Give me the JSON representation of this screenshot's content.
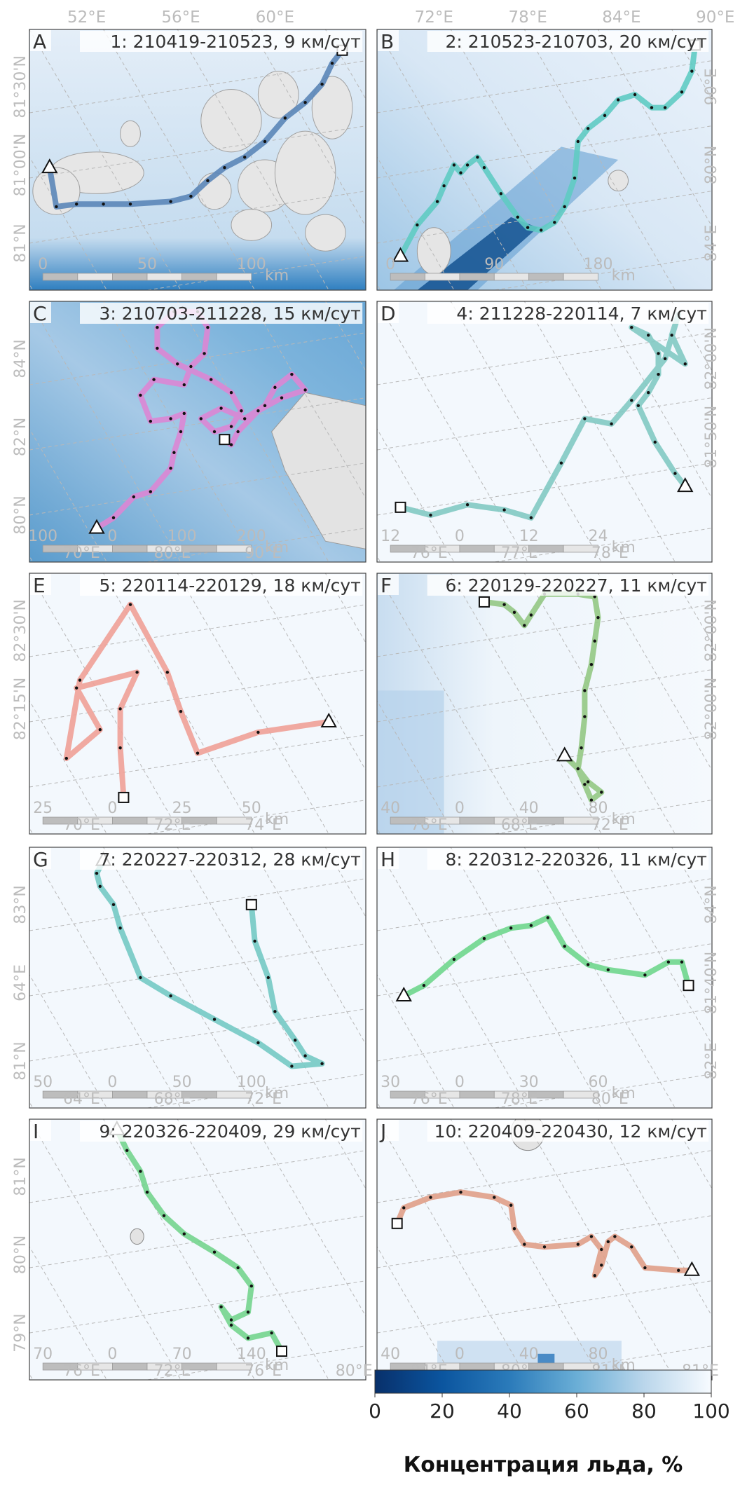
{
  "figure": {
    "colorbar": {
      "label": "Концентрация льда, %",
      "ticks": [
        "0",
        "20",
        "40",
        "60",
        "80",
        "100"
      ],
      "min": 0,
      "max": 100
    }
  },
  "chart_data": [
    {
      "type": "line",
      "letter": "A",
      "title": "1: 210419-210523, 9 км/сут",
      "color": "#5b86b8",
      "background": "mixed_islands",
      "lon_labels": [
        "52°E",
        "56°E",
        "60°E"
      ],
      "lat_labels": [
        "81°30'N",
        "81°00'N",
        "81°N"
      ],
      "scale_labels": [
        "0",
        "50",
        "100"
      ],
      "scale_unit": "km",
      "track": [
        [
          0.06,
          0.53
        ],
        [
          0.08,
          0.68
        ],
        [
          0.14,
          0.67
        ],
        [
          0.22,
          0.67
        ],
        [
          0.3,
          0.67
        ],
        [
          0.42,
          0.66
        ],
        [
          0.48,
          0.64
        ],
        [
          0.53,
          0.58
        ],
        [
          0.58,
          0.53
        ],
        [
          0.64,
          0.49
        ],
        [
          0.7,
          0.43
        ],
        [
          0.76,
          0.34
        ],
        [
          0.82,
          0.28
        ],
        [
          0.87,
          0.21
        ],
        [
          0.9,
          0.13
        ],
        [
          0.93,
          0.08
        ]
      ]
    },
    {
      "type": "line",
      "letter": "B",
      "title": "2: 210523-210703, 20 км/сут",
      "color": "#5fcbc3",
      "background": "stripe",
      "lon_labels": [
        "72°E",
        "78°E",
        "84°E",
        "90°E"
      ],
      "lat_labels": [
        "90°E",
        "80°N",
        "84°E"
      ],
      "scale_labels": [
        "0",
        "90",
        "180"
      ],
      "scale_unit": "km",
      "track": [
        [
          0.07,
          0.87
        ],
        [
          0.12,
          0.75
        ],
        [
          0.18,
          0.66
        ],
        [
          0.2,
          0.6
        ],
        [
          0.23,
          0.52
        ],
        [
          0.25,
          0.55
        ],
        [
          0.27,
          0.52
        ],
        [
          0.3,
          0.49
        ],
        [
          0.32,
          0.53
        ],
        [
          0.37,
          0.63
        ],
        [
          0.42,
          0.72
        ],
        [
          0.45,
          0.76
        ],
        [
          0.49,
          0.77
        ],
        [
          0.53,
          0.74
        ],
        [
          0.56,
          0.68
        ],
        [
          0.59,
          0.57
        ],
        [
          0.6,
          0.43
        ],
        [
          0.63,
          0.38
        ],
        [
          0.68,
          0.33
        ],
        [
          0.72,
          0.27
        ],
        [
          0.77,
          0.25
        ],
        [
          0.82,
          0.3
        ],
        [
          0.86,
          0.3
        ],
        [
          0.91,
          0.24
        ],
        [
          0.94,
          0.16
        ],
        [
          0.95,
          0.06
        ]
      ]
    },
    {
      "type": "line",
      "letter": "C",
      "title": "3: 210703-211228, 15 км/сут",
      "color": "#dc86d4",
      "background": "dark_island",
      "lon_labels": [
        "70°E",
        "80°E",
        "90°E"
      ],
      "lat_labels": [
        "84°N",
        "82°N",
        "80°N"
      ],
      "scale_labels": [
        "100",
        "0",
        "100",
        "200"
      ],
      "scale_unit": "km",
      "track": [
        [
          0.2,
          0.87
        ],
        [
          0.25,
          0.83
        ],
        [
          0.31,
          0.75
        ],
        [
          0.36,
          0.73
        ],
        [
          0.42,
          0.64
        ],
        [
          0.43,
          0.58
        ],
        [
          0.45,
          0.5
        ],
        [
          0.46,
          0.43
        ],
        [
          0.42,
          0.45
        ],
        [
          0.36,
          0.46
        ],
        [
          0.33,
          0.36
        ],
        [
          0.37,
          0.3
        ],
        [
          0.46,
          0.32
        ],
        [
          0.48,
          0.25
        ],
        [
          0.52,
          0.2
        ],
        [
          0.53,
          0.1
        ],
        [
          0.5,
          0.04
        ],
        [
          0.43,
          0.04
        ],
        [
          0.38,
          0.1
        ],
        [
          0.38,
          0.18
        ],
        [
          0.44,
          0.24
        ],
        [
          0.54,
          0.3
        ],
        [
          0.6,
          0.35
        ],
        [
          0.63,
          0.42
        ],
        [
          0.6,
          0.48
        ],
        [
          0.55,
          0.5
        ],
        [
          0.51,
          0.45
        ],
        [
          0.57,
          0.41
        ],
        [
          0.64,
          0.45
        ],
        [
          0.7,
          0.4
        ],
        [
          0.73,
          0.33
        ],
        [
          0.78,
          0.28
        ],
        [
          0.82,
          0.34
        ],
        [
          0.75,
          0.37
        ],
        [
          0.68,
          0.42
        ],
        [
          0.62,
          0.5
        ],
        [
          0.6,
          0.55
        ],
        [
          0.58,
          0.53
        ]
      ]
    },
    {
      "type": "line",
      "letter": "D",
      "title": "4: 211228-220114, 7 км/сут",
      "color": "#82c9c3",
      "background": "light",
      "lon_labels": [
        "76°E",
        "77°E",
        "78°E"
      ],
      "lat_labels": [
        "82°00'N",
        "81°50'N"
      ],
      "scale_labels": [
        "12",
        "0",
        "12",
        "24"
      ],
      "scale_unit": "km",
      "track": [
        [
          0.92,
          0.71
        ],
        [
          0.89,
          0.66
        ],
        [
          0.83,
          0.54
        ],
        [
          0.78,
          0.4
        ],
        [
          0.81,
          0.35
        ],
        [
          0.84,
          0.28
        ],
        [
          0.84,
          0.2
        ],
        [
          0.81,
          0.13
        ],
        [
          0.76,
          0.1
        ],
        [
          0.92,
          0.24
        ],
        [
          0.88,
          0.13
        ],
        [
          0.9,
          0.05
        ],
        [
          0.86,
          0.22
        ],
        [
          0.76,
          0.38
        ],
        [
          0.7,
          0.47
        ],
        [
          0.62,
          0.45
        ],
        [
          0.55,
          0.62
        ],
        [
          0.46,
          0.83
        ],
        [
          0.38,
          0.8
        ],
        [
          0.27,
          0.78
        ],
        [
          0.16,
          0.82
        ],
        [
          0.07,
          0.79
        ]
      ]
    },
    {
      "type": "line",
      "letter": "E",
      "title": "5: 220114-220129, 18 км/сут",
      "color": "#f0a097",
      "background": "light",
      "lon_labels": [
        "70°E",
        "72°E",
        "74°E"
      ],
      "lat_labels": [
        "82°30'N",
        "82°15'N"
      ],
      "scale_labels": [
        "25",
        "0",
        "25",
        "50"
      ],
      "scale_unit": "km",
      "track": [
        [
          0.89,
          0.57
        ],
        [
          0.68,
          0.61
        ],
        [
          0.5,
          0.69
        ],
        [
          0.45,
          0.53
        ],
        [
          0.41,
          0.38
        ],
        [
          0.3,
          0.12
        ],
        [
          0.15,
          0.41
        ],
        [
          0.11,
          0.71
        ],
        [
          0.21,
          0.6
        ],
        [
          0.14,
          0.44
        ],
        [
          0.32,
          0.38
        ],
        [
          0.27,
          0.52
        ],
        [
          0.27,
          0.67
        ],
        [
          0.28,
          0.86
        ]
      ]
    },
    {
      "type": "line",
      "letter": "F",
      "title": "6: 220129-220227, 11 км/сут",
      "color": "#93c884",
      "background": "faint_left",
      "lon_labels": [
        "76°E",
        "68°E",
        "72°E"
      ],
      "lat_labels": [
        "82°00'N",
        "82°00'N"
      ],
      "scale_labels": [
        "40",
        "0",
        "40",
        "80"
      ],
      "scale_unit": "km",
      "track": [
        [
          0.56,
          0.7
        ],
        [
          0.6,
          0.75
        ],
        [
          0.63,
          0.8
        ],
        [
          0.67,
          0.84
        ],
        [
          0.64,
          0.87
        ],
        [
          0.62,
          0.81
        ],
        [
          0.6,
          0.75
        ],
        [
          0.61,
          0.67
        ],
        [
          0.62,
          0.55
        ],
        [
          0.62,
          0.45
        ],
        [
          0.64,
          0.35
        ],
        [
          0.65,
          0.26
        ],
        [
          0.66,
          0.17
        ],
        [
          0.65,
          0.09
        ],
        [
          0.6,
          0.08
        ],
        [
          0.5,
          0.08
        ],
        [
          0.46,
          0.16
        ],
        [
          0.44,
          0.2
        ],
        [
          0.41,
          0.15
        ],
        [
          0.38,
          0.12
        ],
        [
          0.32,
          0.11
        ]
      ]
    },
    {
      "type": "line",
      "letter": "G",
      "title": "7: 220227-220312, 28 км/сут",
      "color": "#74c9c4",
      "background": "light",
      "lon_labels": [
        "64°E",
        "68°E",
        "72°E"
      ],
      "lat_labels": [
        "83°N",
        "64°E",
        "81°N"
      ],
      "scale_labels": [
        "50",
        "0",
        "50",
        "100"
      ],
      "scale_unit": "km",
      "track": [
        [
          0.22,
          0.05
        ],
        [
          0.2,
          0.1
        ],
        [
          0.21,
          0.15
        ],
        [
          0.25,
          0.22
        ],
        [
          0.27,
          0.31
        ],
        [
          0.33,
          0.5
        ],
        [
          0.42,
          0.57
        ],
        [
          0.55,
          0.66
        ],
        [
          0.68,
          0.75
        ],
        [
          0.78,
          0.84
        ],
        [
          0.87,
          0.83
        ],
        [
          0.82,
          0.8
        ],
        [
          0.79,
          0.74
        ],
        [
          0.73,
          0.63
        ],
        [
          0.71,
          0.5
        ],
        [
          0.67,
          0.36
        ],
        [
          0.66,
          0.22
        ]
      ]
    },
    {
      "type": "line",
      "letter": "H",
      "title": "8: 220312-220326, 11 км/сут",
      "color": "#6fd68d",
      "background": "light",
      "lon_labels": [
        "76°E",
        "78°E",
        "80°E"
      ],
      "lat_labels": [
        "84°N",
        "81°40'N",
        "82°E"
      ],
      "scale_labels": [
        "30",
        "0",
        "30",
        "60"
      ],
      "scale_unit": "km",
      "track": [
        [
          0.08,
          0.57
        ],
        [
          0.14,
          0.53
        ],
        [
          0.23,
          0.43
        ],
        [
          0.32,
          0.35
        ],
        [
          0.4,
          0.31
        ],
        [
          0.46,
          0.3
        ],
        [
          0.51,
          0.27
        ],
        [
          0.56,
          0.38
        ],
        [
          0.63,
          0.45
        ],
        [
          0.69,
          0.47
        ],
        [
          0.8,
          0.49
        ],
        [
          0.87,
          0.44
        ],
        [
          0.91,
          0.44
        ],
        [
          0.93,
          0.53
        ]
      ]
    },
    {
      "type": "line",
      "letter": "I",
      "title": "9: 220326-220409, 29 км/сут",
      "color": "#74d48e",
      "background": "light",
      "lon_labels": [
        "76°E",
        "72°E",
        "76°E",
        "80°E"
      ],
      "lat_labels": [
        "81°N",
        "80°N",
        "79°N"
      ],
      "scale_labels": [
        "70",
        "0",
        "70",
        "140"
      ],
      "scale_unit": "km",
      "track": [
        [
          0.26,
          0.04
        ],
        [
          0.29,
          0.12
        ],
        [
          0.33,
          0.2
        ],
        [
          0.35,
          0.28
        ],
        [
          0.4,
          0.37
        ],
        [
          0.46,
          0.44
        ],
        [
          0.55,
          0.51
        ],
        [
          0.62,
          0.57
        ],
        [
          0.66,
          0.64
        ],
        [
          0.65,
          0.74
        ],
        [
          0.6,
          0.77
        ],
        [
          0.57,
          0.72
        ],
        [
          0.6,
          0.79
        ],
        [
          0.65,
          0.84
        ],
        [
          0.72,
          0.82
        ],
        [
          0.75,
          0.89
        ]
      ]
    },
    {
      "type": "line",
      "letter": "J",
      "title": "10: 220409-220430, 12 км/сут",
      "color": "#e09f88",
      "background": "patches",
      "lon_labels": [
        "84°E",
        "80°N",
        "81°N",
        "81°E"
      ],
      "lat_labels": [],
      "scale_labels": [
        "40",
        "0",
        "40",
        "80"
      ],
      "scale_unit": "km",
      "track": [
        [
          0.94,
          0.58
        ],
        [
          0.9,
          0.58
        ],
        [
          0.8,
          0.57
        ],
        [
          0.76,
          0.49
        ],
        [
          0.71,
          0.45
        ],
        [
          0.69,
          0.47
        ],
        [
          0.67,
          0.56
        ],
        [
          0.65,
          0.6
        ],
        [
          0.67,
          0.5
        ],
        [
          0.64,
          0.45
        ],
        [
          0.6,
          0.48
        ],
        [
          0.5,
          0.49
        ],
        [
          0.44,
          0.48
        ],
        [
          0.41,
          0.42
        ],
        [
          0.4,
          0.33
        ],
        [
          0.35,
          0.3
        ],
        [
          0.25,
          0.28
        ],
        [
          0.16,
          0.3
        ],
        [
          0.08,
          0.34
        ],
        [
          0.06,
          0.4
        ]
      ]
    }
  ]
}
